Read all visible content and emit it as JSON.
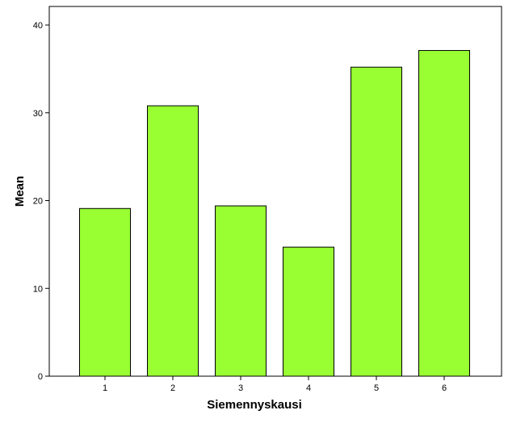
{
  "chart_data": {
    "type": "bar",
    "title": "",
    "xlabel": "Siemennyskausi",
    "ylabel": "Mean",
    "categories": [
      "1",
      "2",
      "3",
      "4",
      "5",
      "6"
    ],
    "values": [
      19.1,
      30.8,
      19.4,
      14.7,
      35.2,
      37.1
    ],
    "ylim": [
      0,
      40
    ],
    "yticks": [
      "0",
      "10",
      "20",
      "30",
      "40"
    ],
    "grid": false,
    "legend": "none",
    "bar_color": "#99ff33",
    "bar_edge_color": "#000000"
  }
}
